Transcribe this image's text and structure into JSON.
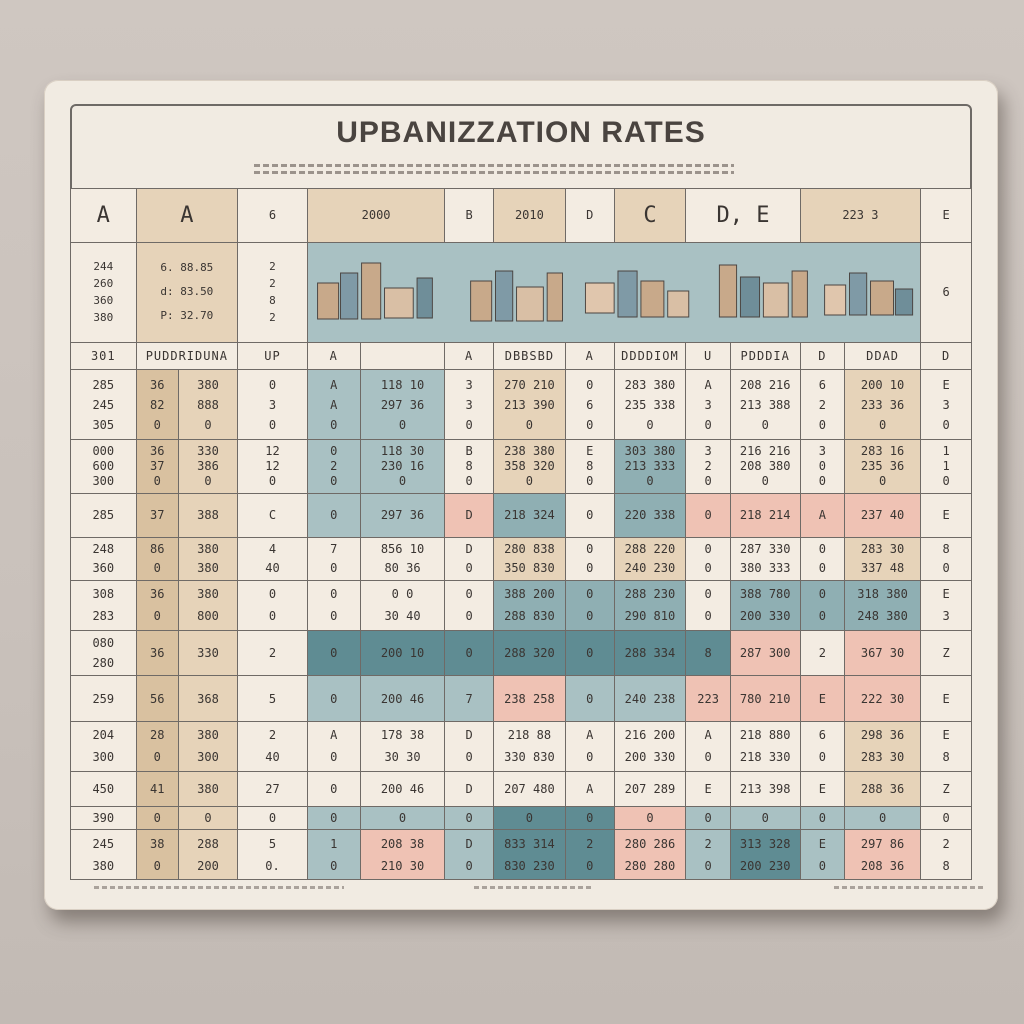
{
  "title": "UPBANIZZATION RATES",
  "header": [
    "A",
    "A",
    "6",
    "2000",
    "B",
    "2010",
    "D",
    "C",
    "D, E",
    "223 3",
    "E"
  ],
  "image_row_left": [
    "244\n260\n360\n380",
    "6. 88.85\nd: 83.50\nP: 32.70",
    "2\n2\n8\n2"
  ],
  "image_row_right": "6",
  "label_row": [
    "301",
    "PUDDRIDUNA",
    "UP",
    "A",
    "A",
    "DBBSBD",
    "A",
    "DDDDIOM",
    "U",
    "PDDDIA",
    "D",
    "DDAD",
    "D"
  ],
  "rows": [
    [
      "285\n245\n305",
      "36\n82\n0",
      "380\n888\n0",
      "0\n3\n0",
      "A\nA\n0",
      "118 10\n297 36\n0",
      "3\n3\n0",
      "270 210\n213 390\n0",
      "0\n6\n0",
      "283 380\n235 338\n0",
      "A\n3\n0",
      "208 216\n213 388\n0",
      "6\n2\n0",
      "200 10\n233 36\n0",
      "E\n3\n0"
    ],
    [
      "000\n600\n300",
      "36\n37\n0",
      "330\n386\n0",
      "12\n12\n0",
      "0\n2\n0",
      "118 30\n230 16\n0",
      "B\n8\n0",
      "238 380\n358 320\n0",
      "E\n8\n0",
      "303 380\n213 333\n0",
      "3\n2\n0",
      "216 216\n208 380\n0",
      "3\n0\n0",
      "283 16\n235 36\n0",
      "1\n1\n0"
    ],
    [
      "285",
      "37",
      "388",
      "C",
      "0",
      "297 36",
      "D",
      "218 324",
      "0",
      "220 338",
      "0",
      "218 214",
      "A",
      "237 40",
      "E"
    ],
    [
      "248\n360",
      "86\n0",
      "380\n380",
      "4\n40",
      "7\n0",
      "856 10\n80 36",
      "D\n0",
      "280 838\n350 830",
      "0\n0",
      "288 220\n240 230",
      "0\n0",
      "287 330\n380 333",
      "0\n0",
      "283 30\n337 48",
      "8\n0"
    ],
    [
      "308\n283",
      "36\n0",
      "380\n800",
      "0\n0",
      "0\n0",
      "0 0\n30 40",
      "0\n0",
      "388 200\n288 830",
      "0\n0",
      "288 230\n290 810",
      "0\n0",
      "388 780\n200 330",
      "0\n0",
      "318 380\n248 380",
      "E\n3"
    ],
    [
      "080\n280",
      "36",
      "330",
      "2",
      "0",
      "200 10",
      "0",
      "288 320",
      "0",
      "288 334",
      "8",
      "287 300",
      "2",
      "367 30",
      "Z"
    ],
    [
      "259",
      "56",
      "368",
      "5",
      "0",
      "200 46",
      "7",
      "238 258",
      "0",
      "240 238",
      "223",
      "780 210",
      "E",
      "222 30",
      "E"
    ],
    [
      "204\n300",
      "28\n0",
      "380\n300",
      "2\n40",
      "A\n0",
      "178 38\n30 30",
      "D\n0",
      "218 88\n330 830",
      "A\n0",
      "216 200\n200 330",
      "A\n0",
      "218 880\n218 330",
      "6\n0",
      "298 36\n283 30",
      "E\n8"
    ],
    [
      "450",
      "41",
      "380",
      "27",
      "0",
      "200 46",
      "D",
      "207 480",
      "A",
      "207 289",
      "E",
      "213 398",
      "E",
      "288 36",
      "Z"
    ],
    [
      "390",
      "0",
      "0",
      "0",
      "0",
      "0",
      "0",
      "0",
      "0",
      "0",
      "0",
      "0",
      "0",
      "0",
      "0"
    ],
    [
      "245\n380",
      "38\n0",
      "288\n200",
      "5\n0.",
      "1\n0",
      "208 38\n210 30",
      "D\n0",
      "833 314\n830 230",
      "2\n0",
      "280 286\n280 280",
      "2\n0",
      "313 328\n200 230",
      "E\n0",
      "297 86\n208 36",
      "2\n8"
    ]
  ],
  "colors": {
    "background": "#cbc3bd",
    "board": "#f1ebe2",
    "beige": "#e6d3b9",
    "teal": "#a9c1c3",
    "teal_dark": "#5f8c93",
    "pink": "#efc2b4"
  }
}
